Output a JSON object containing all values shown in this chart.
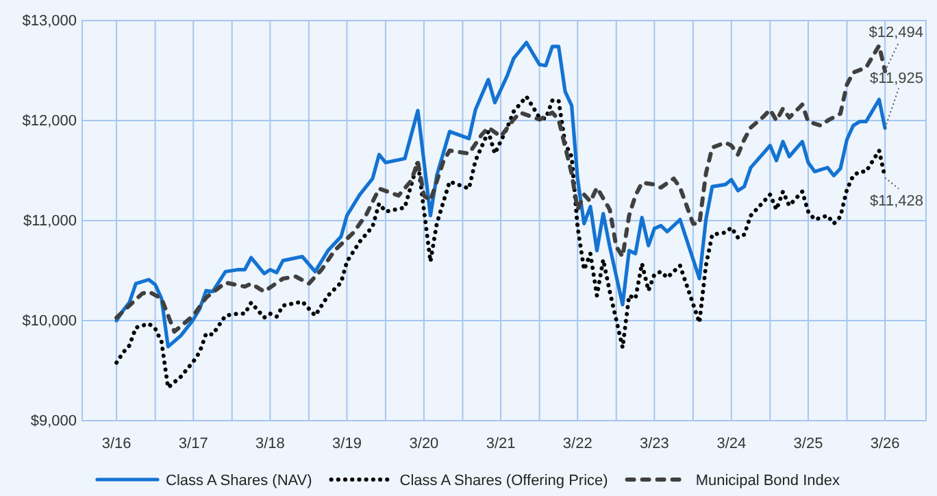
{
  "chart_data": {
    "type": "line",
    "legend": "bottom",
    "grid": true,
    "xlim": [
      "2015-09-20",
      "2026-09-12"
    ],
    "xticks": [
      {
        "value": "2016-03",
        "label": "3/16"
      },
      {
        "value": "2016-09",
        "label": null
      },
      {
        "value": "2017-03",
        "label": "3/17"
      },
      {
        "value": "2017-09",
        "label": null
      },
      {
        "value": "2018-03",
        "label": "3/18"
      },
      {
        "value": "2018-09",
        "label": null
      },
      {
        "value": "2019-03",
        "label": "3/19"
      },
      {
        "value": "2019-09",
        "label": null
      },
      {
        "value": "2020-03",
        "label": "3/20"
      },
      {
        "value": "2020-09",
        "label": null
      },
      {
        "value": "2021-03",
        "label": "3/21"
      },
      {
        "value": "2021-09",
        "label": null
      },
      {
        "value": "2022-03",
        "label": "3/22"
      },
      {
        "value": "2022-09",
        "label": null
      },
      {
        "value": "2023-03",
        "label": "3/23"
      },
      {
        "value": "2023-09",
        "label": null
      },
      {
        "value": "2024-03",
        "label": "3/24"
      },
      {
        "value": "2024-09",
        "label": null
      },
      {
        "value": "2025-03",
        "label": "3/25"
      },
      {
        "value": "2025-09",
        "label": null
      },
      {
        "value": "2026-03",
        "label": "3/26"
      }
    ],
    "ylim": [
      9000,
      13000
    ],
    "yticks": [
      {
        "value": 9000,
        "label": "$9,000"
      },
      {
        "value": 10000,
        "label": "$10,000"
      },
      {
        "value": 11000,
        "label": "$11,000"
      },
      {
        "value": 12000,
        "label": "$12,000"
      },
      {
        "value": 13000,
        "label": "$13,000"
      }
    ],
    "annotations": [
      {
        "text": "$12,494",
        "x": "2026-03",
        "y": 12494
      },
      {
        "text": "$11,925",
        "x": "2026-03",
        "y": 11925
      },
      {
        "text": "$11,428",
        "x": "2026-03",
        "y": 11428
      }
    ],
    "series": [
      {
        "name": "Class A Shares (NAV)",
        "color": "#1473d2",
        "line_style": "solid",
        "x": [
          "2016-03",
          "2016-04",
          "2016-05",
          "2016-06",
          "2016-08",
          "2016-09",
          "2016-10",
          "2016-11",
          "2017-01",
          "2017-03",
          "2017-04",
          "2017-05",
          "2017-06",
          "2017-08",
          "2017-10",
          "2017-11",
          "2017-12",
          "2018-02",
          "2018-03",
          "2018-04",
          "2018-05",
          "2018-08",
          "2018-10",
          "2018-12",
          "2019-02",
          "2019-03",
          "2019-05",
          "2019-07",
          "2019-08",
          "2019-09",
          "2019-12",
          "2020-02",
          "2020-04",
          "2020-05",
          "2020-07",
          "2020-10",
          "2020-11",
          "2021-01",
          "2021-02",
          "2021-04",
          "2021-05",
          "2021-07",
          "2021-09",
          "2021-10",
          "2021-11",
          "2021-12",
          "2022-01",
          "2022-02",
          "2022-03",
          "2022-04",
          "2022-05",
          "2022-06",
          "2022-07",
          "2022-08",
          "2022-10",
          "2022-11",
          "2022-12",
          "2023-01",
          "2023-02",
          "2023-03",
          "2023-04",
          "2023-05",
          "2023-07",
          "2023-10",
          "2023-11",
          "2023-12",
          "2024-02",
          "2024-03",
          "2024-04",
          "2024-05",
          "2024-06",
          "2024-09",
          "2024-10",
          "2024-11",
          "2024-12",
          "2025-02",
          "2025-03",
          "2025-04",
          "2025-06",
          "2025-07",
          "2025-08",
          "2025-09",
          "2025-10",
          "2025-11",
          "2025-12",
          "2026-02",
          "2026-03"
        ],
        "values": [
          10000,
          10100,
          10180,
          10370,
          10410,
          10360,
          10220,
          9740,
          9850,
          10010,
          10120,
          10300,
          10290,
          10490,
          10510,
          10510,
          10630,
          10470,
          10510,
          10480,
          10600,
          10640,
          10490,
          10700,
          10840,
          11050,
          11260,
          11420,
          11660,
          11580,
          11620,
          12100,
          11050,
          11450,
          11890,
          11820,
          12110,
          12410,
          12180,
          12450,
          12620,
          12780,
          12560,
          12550,
          12740,
          12740,
          12290,
          12150,
          11420,
          10970,
          11140,
          10700,
          11070,
          10740,
          10160,
          10700,
          10670,
          11030,
          10750,
          10920,
          10950,
          10890,
          11010,
          10420,
          11010,
          11340,
          11360,
          11410,
          11300,
          11340,
          11530,
          11750,
          11600,
          11790,
          11640,
          11790,
          11580,
          11490,
          11530,
          11450,
          11520,
          11810,
          11950,
          11990,
          11990,
          12210,
          11925
        ]
      },
      {
        "name": "Class A Shares (Offering Price)",
        "color": "#000000",
        "line_style": "dotted",
        "x": [
          "2016-03",
          "2016-04",
          "2016-05",
          "2016-06",
          "2016-08",
          "2016-09",
          "2016-10",
          "2016-11",
          "2017-01",
          "2017-03",
          "2017-04",
          "2017-05",
          "2017-06",
          "2017-08",
          "2017-10",
          "2017-11",
          "2017-12",
          "2018-02",
          "2018-03",
          "2018-04",
          "2018-05",
          "2018-08",
          "2018-10",
          "2018-12",
          "2019-02",
          "2019-03",
          "2019-05",
          "2019-07",
          "2019-08",
          "2019-09",
          "2019-12",
          "2020-02",
          "2020-04",
          "2020-05",
          "2020-07",
          "2020-10",
          "2020-11",
          "2021-01",
          "2021-02",
          "2021-04",
          "2021-05",
          "2021-07",
          "2021-09",
          "2021-10",
          "2021-11",
          "2021-12",
          "2022-01",
          "2022-02",
          "2022-03",
          "2022-04",
          "2022-05",
          "2022-06",
          "2022-07",
          "2022-08",
          "2022-10",
          "2022-11",
          "2022-12",
          "2023-01",
          "2023-02",
          "2023-03",
          "2023-04",
          "2023-05",
          "2023-07",
          "2023-10",
          "2023-11",
          "2023-12",
          "2024-02",
          "2024-03",
          "2024-04",
          "2024-05",
          "2024-06",
          "2024-09",
          "2024-10",
          "2024-11",
          "2024-12",
          "2025-02",
          "2025-03",
          "2025-04",
          "2025-06",
          "2025-07",
          "2025-08",
          "2025-09",
          "2025-10",
          "2025-11",
          "2025-12",
          "2026-02",
          "2026-03"
        ],
        "values": [
          9580,
          9680,
          9750,
          9930,
          9970,
          9920,
          9790,
          9330,
          9440,
          9590,
          9690,
          9870,
          9860,
          10050,
          10070,
          10070,
          10180,
          10030,
          10070,
          10040,
          10150,
          10190,
          10050,
          10250,
          10380,
          10590,
          10790,
          10940,
          11170,
          11090,
          11130,
          11590,
          10590,
          10970,
          11390,
          11320,
          11600,
          11890,
          11670,
          11930,
          12090,
          12240,
          12030,
          12020,
          12200,
          12200,
          11770,
          11640,
          10940,
          10510,
          10670,
          10250,
          10610,
          10290,
          9730,
          10250,
          10220,
          10570,
          10300,
          10460,
          10490,
          10430,
          10550,
          9980,
          10550,
          10860,
          10880,
          10930,
          10830,
          10860,
          11050,
          11260,
          11110,
          11290,
          11150,
          11290,
          11090,
          11010,
          11050,
          10970,
          11040,
          11310,
          11450,
          11490,
          11490,
          11700,
          11428
        ]
      },
      {
        "name": "Municipal Bond Index",
        "color": "#404040",
        "line_style": "dashed",
        "x": [
          "2016-03",
          "2016-05",
          "2016-07",
          "2016-08",
          "2016-10",
          "2016-12",
          "2017-03",
          "2017-05",
          "2017-08",
          "2017-11",
          "2017-12",
          "2018-02",
          "2018-05",
          "2018-07",
          "2018-09",
          "2018-11",
          "2019-01",
          "2019-04",
          "2019-06",
          "2019-08",
          "2019-11",
          "2020-01",
          "2020-02",
          "2020-03",
          "2020-04",
          "2020-06",
          "2020-07",
          "2020-10",
          "2020-12",
          "2021-01",
          "2021-03",
          "2021-05",
          "2021-06",
          "2021-09",
          "2021-11",
          "2021-12",
          "2022-01",
          "2022-02",
          "2022-03",
          "2022-04",
          "2022-05",
          "2022-06",
          "2022-08",
          "2022-09",
          "2022-10",
          "2022-11",
          "2022-12",
          "2023-01",
          "2023-03",
          "2023-04",
          "2023-06",
          "2023-07",
          "2023-09",
          "2023-10",
          "2023-11",
          "2023-12",
          "2024-02",
          "2024-03",
          "2024-04",
          "2024-05",
          "2024-06",
          "2024-08",
          "2024-09",
          "2024-10",
          "2024-11",
          "2024-12",
          "2025-02",
          "2025-03",
          "2025-05",
          "2025-06",
          "2025-08",
          "2025-09",
          "2025-10",
          "2025-12",
          "2026-02",
          "2026-03"
        ],
        "values": [
          10030,
          10150,
          10270,
          10290,
          10220,
          9890,
          10050,
          10230,
          10380,
          10340,
          10370,
          10290,
          10420,
          10440,
          10370,
          10510,
          10700,
          10880,
          11060,
          11320,
          11250,
          11400,
          11590,
          11250,
          11200,
          11590,
          11700,
          11670,
          11860,
          11930,
          11840,
          12010,
          12080,
          12010,
          12080,
          12010,
          11740,
          11470,
          11110,
          11260,
          11190,
          11330,
          11110,
          10740,
          10640,
          11050,
          11250,
          11380,
          11360,
          11330,
          11420,
          11330,
          10970,
          10970,
          11470,
          11730,
          11780,
          11750,
          11660,
          11810,
          11930,
          12040,
          12110,
          12000,
          12120,
          12030,
          12160,
          11990,
          11950,
          12000,
          12070,
          12360,
          12480,
          12530,
          12750,
          12494
        ]
      }
    ]
  }
}
